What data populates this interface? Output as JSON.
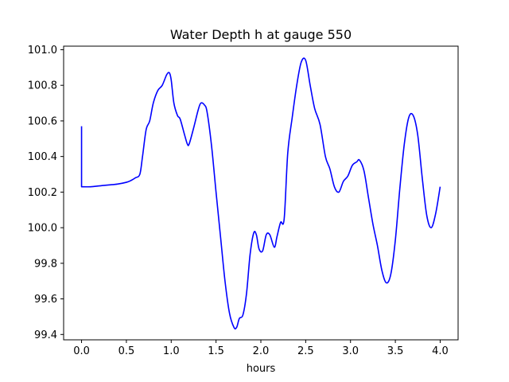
{
  "chart_data": {
    "type": "line",
    "title": "Water Depth h at gauge 550",
    "xlabel": "hours",
    "ylabel": "",
    "xlim": [
      -0.2,
      4.2
    ],
    "ylim": [
      99.37,
      101.02
    ],
    "grid": false,
    "x_ticks": [
      0.0,
      0.5,
      1.0,
      1.5,
      2.0,
      2.5,
      3.0,
      3.5,
      4.0
    ],
    "x_tick_labels": [
      "0.0",
      "0.5",
      "1.0",
      "1.5",
      "2.0",
      "2.5",
      "3.0",
      "3.5",
      "4.0"
    ],
    "y_ticks": [
      99.4,
      99.6,
      99.8,
      100.0,
      100.2,
      100.4,
      100.6,
      100.8,
      101.0
    ],
    "y_tick_labels": [
      "99.4",
      "99.6",
      "99.8",
      "100.0",
      "100.2",
      "100.4",
      "100.6",
      "100.8",
      "101.0"
    ],
    "series": [
      {
        "color": "#0000ff",
        "x": [
          0.0,
          0.0,
          0.1,
          0.2,
          0.3,
          0.4,
          0.5,
          0.55,
          0.6,
          0.65,
          0.68,
          0.72,
          0.76,
          0.8,
          0.85,
          0.9,
          0.95,
          0.98,
          1.0,
          1.03,
          1.07,
          1.1,
          1.15,
          1.18,
          1.2,
          1.25,
          1.3,
          1.33,
          1.37,
          1.4,
          1.45,
          1.5,
          1.55,
          1.6,
          1.65,
          1.7,
          1.73,
          1.76,
          1.8,
          1.84,
          1.88,
          1.92,
          1.95,
          1.98,
          2.02,
          2.06,
          2.1,
          2.15,
          2.18,
          2.22,
          2.26,
          2.3,
          2.35,
          2.4,
          2.45,
          2.5,
          2.55,
          2.6,
          2.66,
          2.72,
          2.77,
          2.82,
          2.87,
          2.92,
          2.97,
          3.02,
          3.07,
          3.1,
          3.15,
          3.2,
          3.25,
          3.3,
          3.35,
          3.4,
          3.45,
          3.5,
          3.55,
          3.6,
          3.65,
          3.7,
          3.75,
          3.8,
          3.85,
          3.9,
          3.95,
          4.0
        ],
        "y": [
          100.57,
          100.23,
          100.23,
          100.235,
          100.24,
          100.245,
          100.255,
          100.265,
          100.28,
          100.3,
          100.4,
          100.55,
          100.6,
          100.7,
          100.77,
          100.8,
          100.86,
          100.87,
          100.83,
          100.7,
          100.63,
          100.61,
          100.52,
          100.47,
          100.47,
          100.56,
          100.66,
          100.7,
          100.69,
          100.65,
          100.46,
          100.2,
          99.95,
          99.7,
          99.52,
          99.44,
          99.44,
          99.49,
          99.51,
          99.63,
          99.85,
          99.97,
          99.96,
          99.88,
          99.87,
          99.96,
          99.96,
          99.89,
          99.95,
          100.03,
          100.05,
          100.42,
          100.62,
          100.8,
          100.93,
          100.94,
          100.8,
          100.67,
          100.58,
          100.4,
          100.33,
          100.23,
          100.2,
          100.26,
          100.29,
          100.35,
          100.37,
          100.38,
          100.32,
          100.17,
          100.02,
          99.9,
          99.76,
          99.69,
          99.74,
          99.93,
          100.22,
          100.47,
          100.62,
          100.63,
          100.52,
          100.28,
          100.07,
          100.0,
          100.08,
          100.23
        ]
      }
    ]
  }
}
